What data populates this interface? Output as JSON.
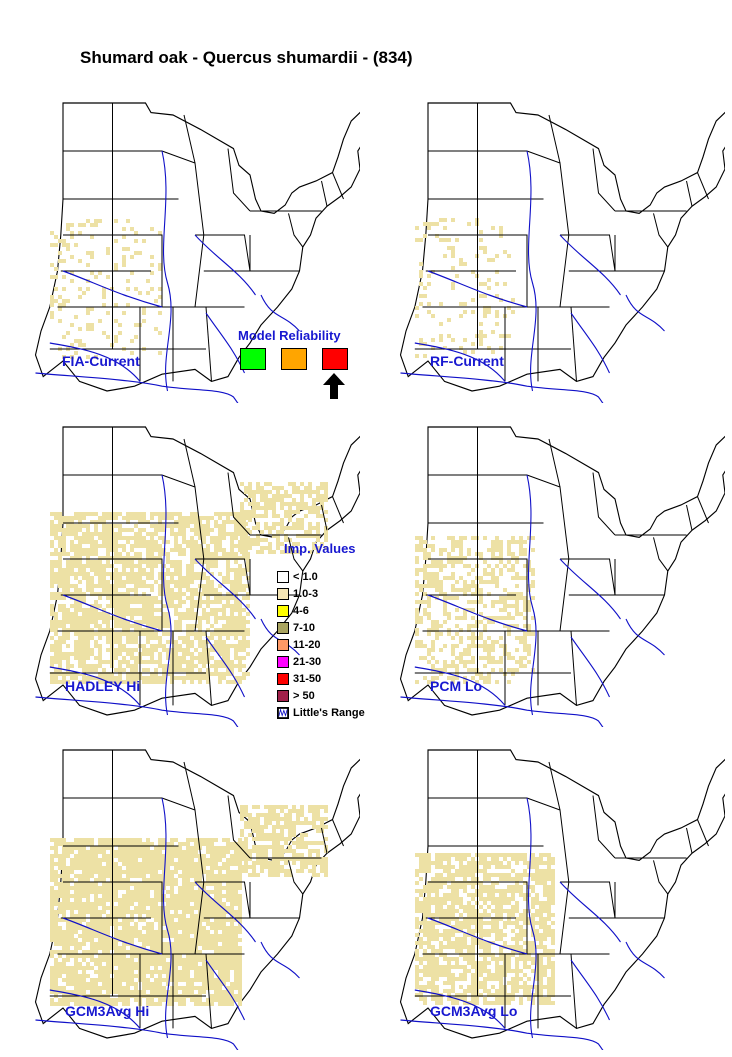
{
  "title": "Shumard oak - Quercus shumardii - (834)",
  "maps": [
    {
      "label": "FIA-Current",
      "density": 0.16,
      "extent": 0.55
    },
    {
      "label": "RF-Current",
      "density": 0.14,
      "extent": 0.5
    },
    {
      "label": "HADLEY Hi",
      "density": 0.72,
      "extent": 1.0
    },
    {
      "label": "PCM Lo",
      "density": 0.45,
      "extent": 0.6
    },
    {
      "label": "GCM3Avg Hi",
      "density": 0.85,
      "extent": 0.95
    },
    {
      "label": "GCM3Avg Lo",
      "density": 0.7,
      "extent": 0.7
    }
  ],
  "reliability": {
    "title": "Model Reliability",
    "boxes": [
      {
        "name": "high",
        "color": "#00ff00"
      },
      {
        "name": "medium",
        "color": "#ffa500"
      },
      {
        "name": "low",
        "color": "#ff0000"
      }
    ],
    "selected": "low"
  },
  "legend": {
    "title": "Imp. Values",
    "items": [
      {
        "label": "< 1.0",
        "color": "#ffffff"
      },
      {
        "label": "1.0-3",
        "color": "#f5e6b4"
      },
      {
        "label": "4-6",
        "color": "#ffff00"
      },
      {
        "label": "7-10",
        "color": "#a9a460"
      },
      {
        "label": "11-20",
        "color": "#ff9966"
      },
      {
        "label": "21-30",
        "color": "#ff00ff"
      },
      {
        "label": "31-50",
        "color": "#ff0000"
      },
      {
        "label": "> 50",
        "color": "#a0204a"
      }
    ],
    "range_label": "Little's Range"
  },
  "colors": {
    "range": "#1010c8",
    "label": "#1818d0",
    "fill": "#ede1a5"
  }
}
